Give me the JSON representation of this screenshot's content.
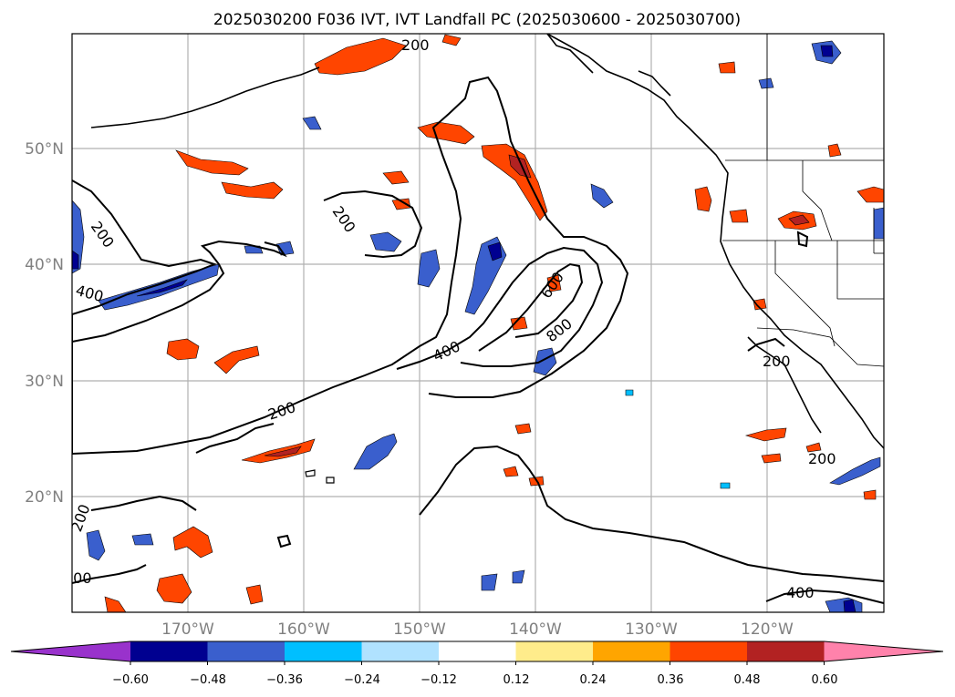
{
  "title": "2025030200 F036 IVT, IVT Landfall PC (2025030600 - 2025030700)",
  "map": {
    "lon_labels": [
      "170°W",
      "160°W",
      "150°W",
      "140°W",
      "130°W",
      "120°W"
    ],
    "lat_labels": [
      "50°N",
      "40°N",
      "30°N",
      "20°N"
    ],
    "grid": true
  },
  "contours": {
    "levels": [
      "200",
      "400",
      "600",
      "800"
    ],
    "labels": [
      "200",
      "200",
      "200",
      "400",
      "200",
      "400",
      "600",
      "800",
      "200",
      "200",
      "200",
      "200",
      "400",
      "200",
      "200"
    ],
    "color": "#000000"
  },
  "colorbar": {
    "ticks": [
      "−0.60",
      "−0.48",
      "−0.36",
      "−0.24",
      "−0.12",
      "0.12",
      "0.24",
      "0.36",
      "0.48",
      "0.60"
    ],
    "colors": [
      "#9932CC",
      "#000090",
      "#3A5FCD",
      "#00BFFF",
      "#B0E2FF",
      "#FFFFFF",
      "#FFEC8B",
      "#FFA500",
      "#FF4500",
      "#B22222",
      "#FF82AB"
    ],
    "extend": "both"
  }
}
